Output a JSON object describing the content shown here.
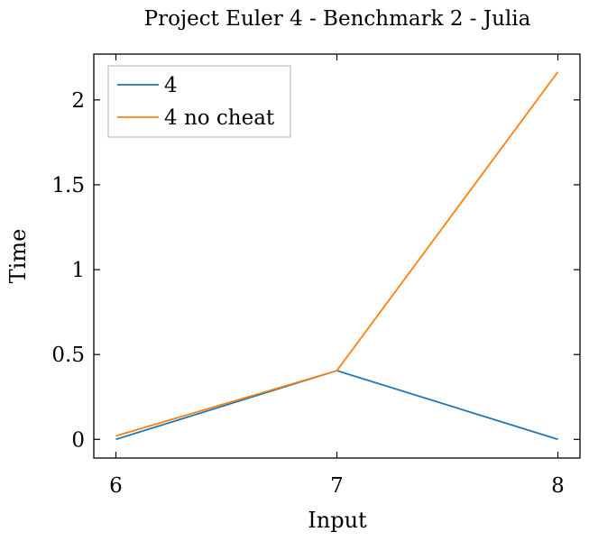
{
  "chart_data": {
    "type": "line",
    "title": "Project Euler 4 - Benchmark 2 - Julia",
    "xlabel": "Input",
    "ylabel": "Time",
    "x": [
      6,
      7,
      8
    ],
    "xlim": [
      5.9,
      8.1
    ],
    "ylim": [
      -0.11,
      2.27
    ],
    "xticks": [
      6,
      7,
      8
    ],
    "xtick_labels": [
      "6",
      "7",
      "8"
    ],
    "yticks": [
      0,
      0.5,
      1,
      1.5,
      2
    ],
    "ytick_labels": [
      "0",
      "0.5",
      "1",
      "1.5",
      "2"
    ],
    "grid": false,
    "legend_position": "top-left",
    "series": [
      {
        "name": "4",
        "color": "#1f77b4",
        "values": [
          0.0,
          0.405,
          0.0
        ]
      },
      {
        "name": "4 no cheat",
        "color": "#ff7f0e",
        "values": [
          0.02,
          0.405,
          2.165
        ]
      }
    ]
  }
}
